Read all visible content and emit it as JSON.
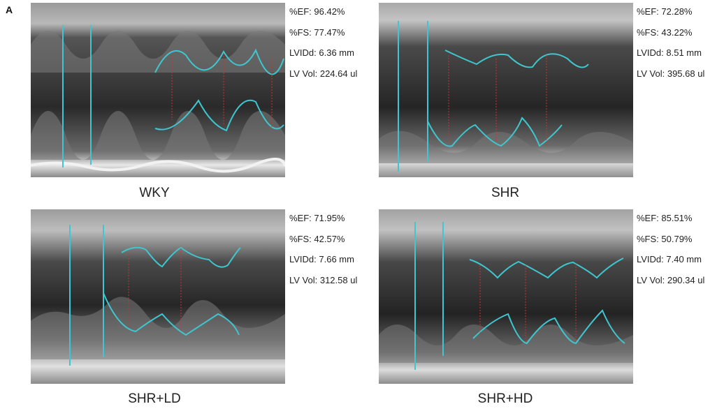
{
  "figure": {
    "panel_letter": "A"
  },
  "panels": [
    {
      "id": "wky",
      "label": "WKY",
      "measurements": {
        "ef": "%EF: 96.42%",
        "fs": "%FS: 77.47%",
        "lvidd": "LVIDd: 6.36 mm",
        "lv_vol": "LV Vol: 224.64 ul"
      },
      "trace_color": "#3fc6cf"
    },
    {
      "id": "shr",
      "label": "SHR",
      "measurements": {
        "ef": "%EF: 72.28%",
        "fs": "%FS: 43.22%",
        "lvidd": "LVIDd: 8.51 mm",
        "lv_vol": "LV Vol: 395.68 ul"
      },
      "trace_color": "#3fc6cf"
    },
    {
      "id": "shr_ld",
      "label": "SHR+LD",
      "measurements": {
        "ef": "%EF: 71.95%",
        "fs": "%FS: 42.57%",
        "lvidd": "LVIDd: 7.66 mm",
        "lv_vol": "LV Vol: 312.58 ul"
      },
      "trace_color": "#3fc6cf"
    },
    {
      "id": "shr_hd",
      "label": "SHR+HD",
      "measurements": {
        "ef": "%EF: 85.51%",
        "fs": "%FS: 50.79%",
        "lvidd": "LVIDd: 7.40 mm",
        "lv_vol": "LV Vol: 290.34 ul"
      },
      "trace_color": "#3fc6cf"
    }
  ]
}
